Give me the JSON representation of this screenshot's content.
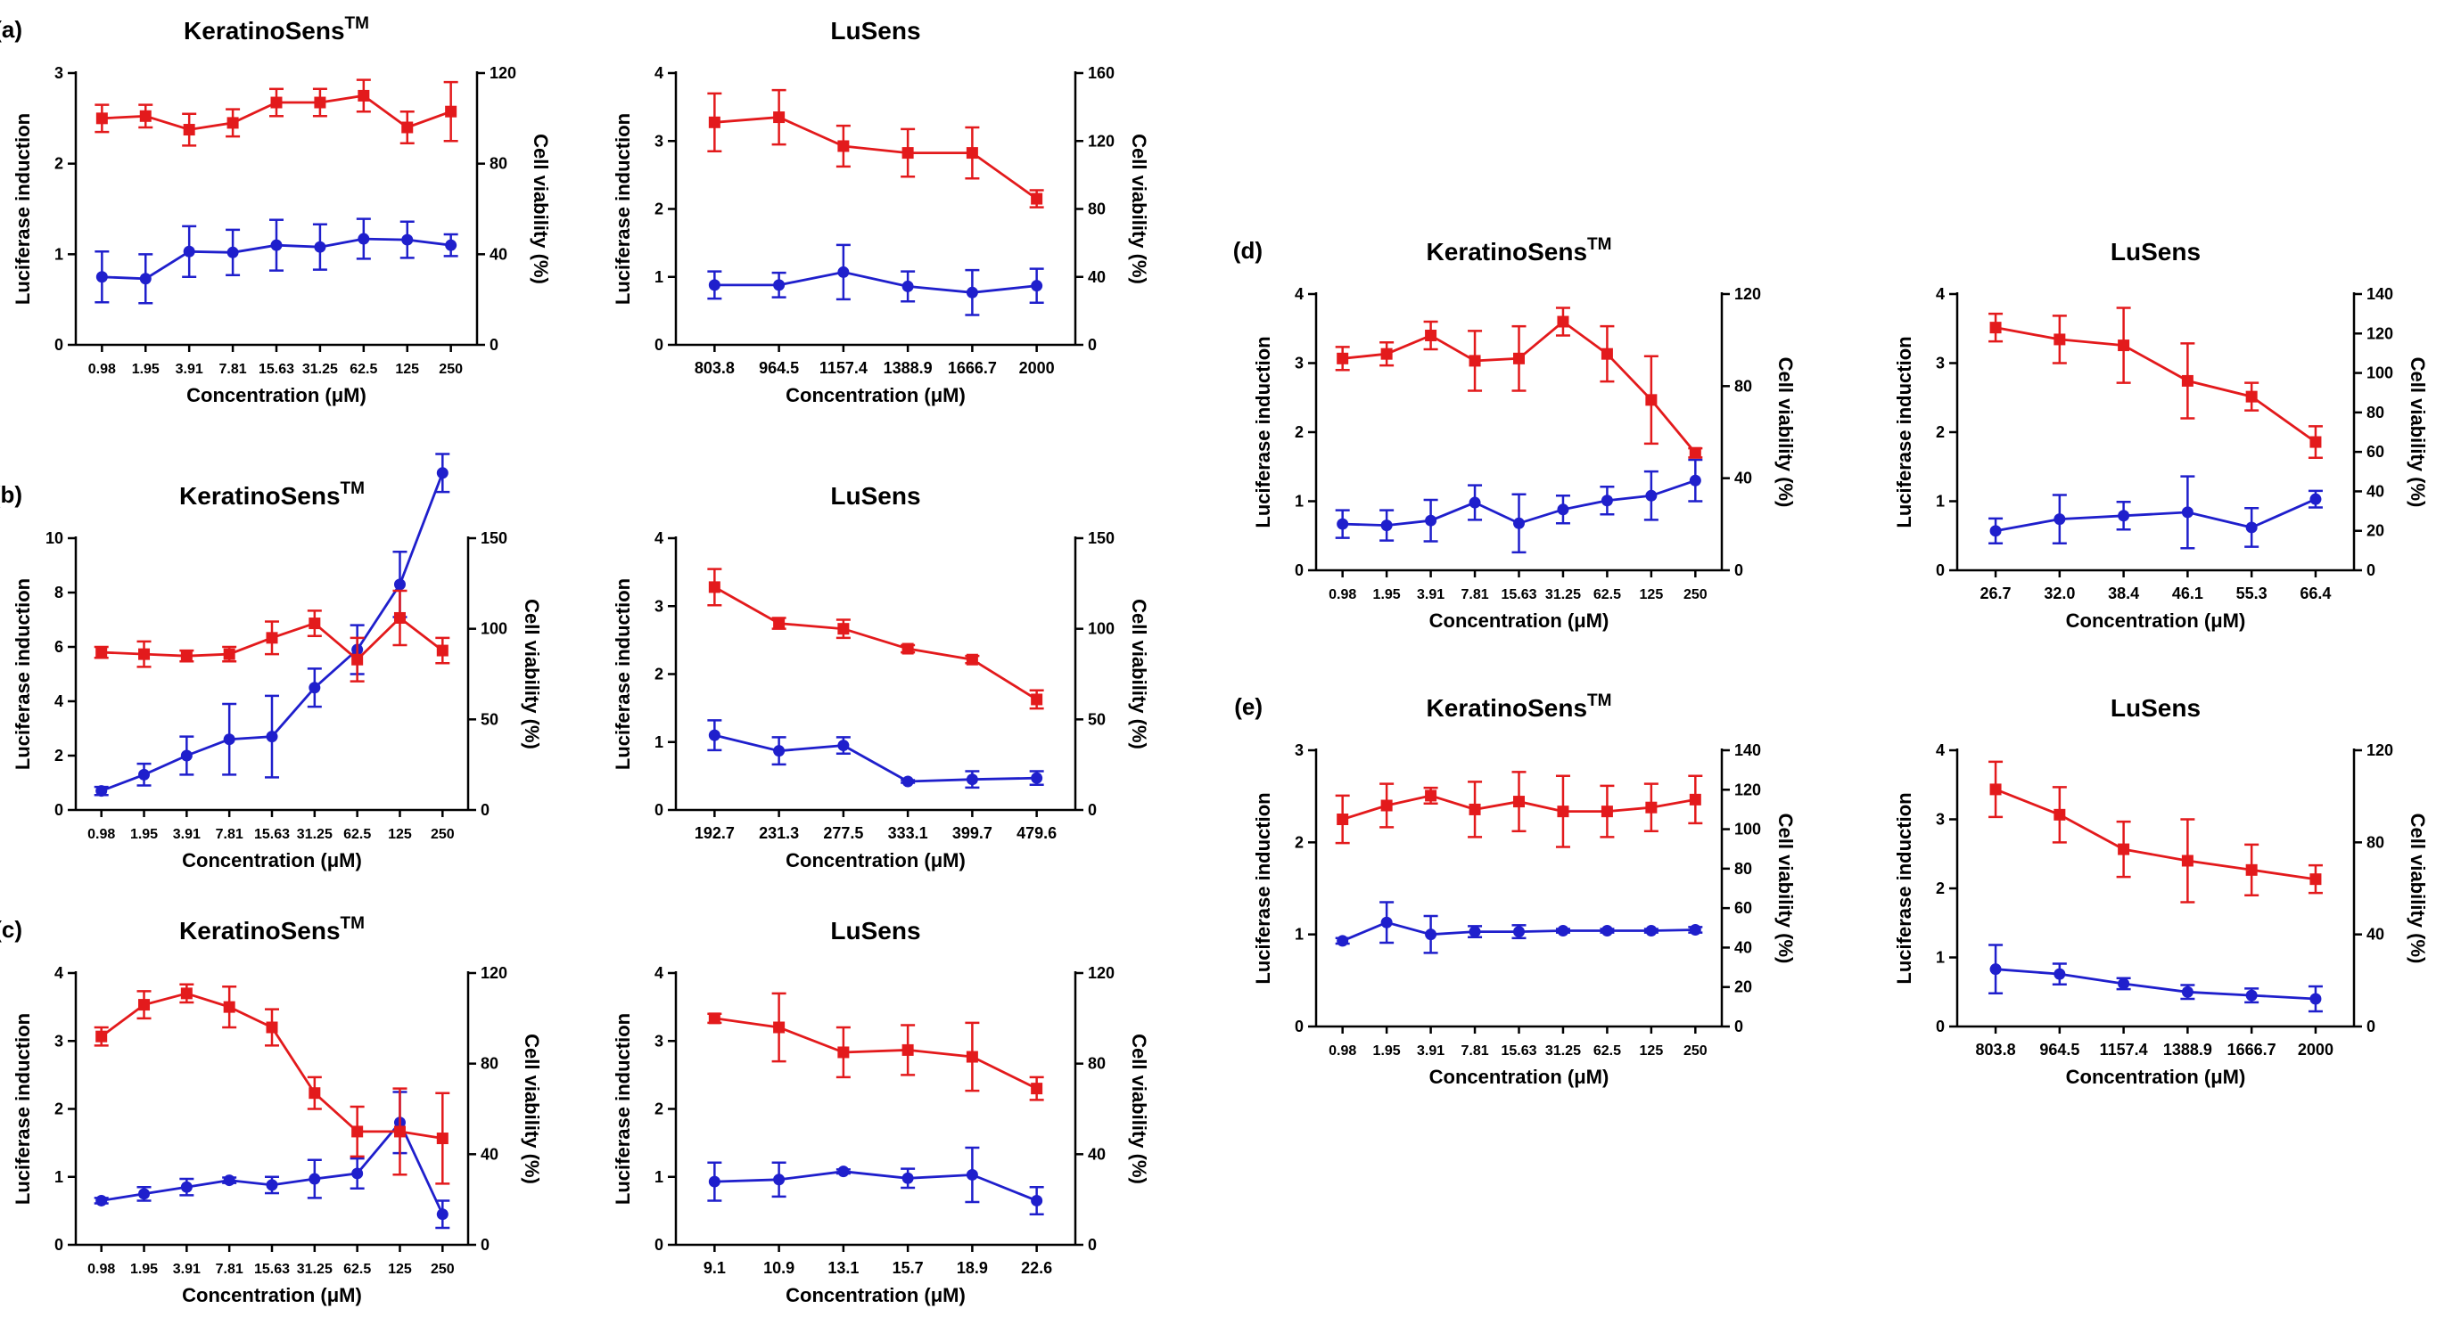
{
  "colors": {
    "luciferase": "#e31a1c",
    "viability": "#1f1fcc",
    "axis": "#000000"
  },
  "axis_text": {
    "ylabel_left": "Luciferase induction",
    "ylabel_right": "Cell viability (%)",
    "xlabel": "Concentration (μM)"
  },
  "chart_data": [
    {
      "id": "a-keratinosens",
      "panel": "(a)",
      "title": "KeratinoSens",
      "title_sup": "TM",
      "type": "line",
      "categories": [
        "0.98",
        "1.95",
        "3.91",
        "7.81",
        "15.63",
        "31.25",
        "62.5",
        "125",
        "250"
      ],
      "y_left": {
        "min": 0,
        "max": 3,
        "ticks": [
          "0",
          "1",
          "2",
          "3"
        ]
      },
      "y_right": {
        "min": 0,
        "max": 120,
        "ticks": [
          "0",
          "40",
          "80",
          "120"
        ]
      },
      "series": [
        {
          "name": "Luciferase induction",
          "axis": "left",
          "values": [
            0.75,
            0.73,
            1.03,
            1.02,
            1.1,
            1.08,
            1.17,
            1.16,
            1.1
          ],
          "errors": [
            0.28,
            0.27,
            0.28,
            0.25,
            0.28,
            0.25,
            0.22,
            0.2,
            0.12
          ]
        },
        {
          "name": "Cell viability",
          "axis": "right",
          "values": [
            100,
            101,
            95,
            98,
            107,
            107,
            110,
            96,
            103
          ],
          "errors": [
            6,
            5,
            7,
            6,
            6,
            6,
            7,
            7,
            13
          ]
        }
      ]
    },
    {
      "id": "a-lusens",
      "panel": "",
      "title": "LuSens",
      "title_sup": "",
      "type": "line",
      "categories": [
        "803.8",
        "964.5",
        "1157.4",
        "1388.9",
        "1666.7",
        "2000"
      ],
      "y_left": {
        "min": 0,
        "max": 4,
        "ticks": [
          "0",
          "1",
          "2",
          "3",
          "4"
        ]
      },
      "y_right": {
        "min": 0,
        "max": 160,
        "ticks": [
          "0",
          "40",
          "80",
          "120",
          "160"
        ]
      },
      "series": [
        {
          "name": "Luciferase induction",
          "axis": "left",
          "values": [
            0.88,
            0.88,
            1.07,
            0.86,
            0.77,
            0.87
          ],
          "errors": [
            0.2,
            0.18,
            0.4,
            0.22,
            0.33,
            0.25
          ]
        },
        {
          "name": "Cell viability",
          "axis": "right",
          "values": [
            131,
            134,
            117,
            113,
            113,
            86
          ],
          "errors": [
            17,
            16,
            12,
            14,
            15,
            5
          ]
        }
      ]
    },
    {
      "id": "b-keratinosens",
      "panel": "(b)",
      "title": "KeratinoSens",
      "title_sup": "TM",
      "type": "line",
      "categories": [
        "0.98",
        "1.95",
        "3.91",
        "7.81",
        "15.63",
        "31.25",
        "62.5",
        "125",
        "250"
      ],
      "y_left": {
        "min": 0,
        "max": 10,
        "ticks": [
          "0",
          "2",
          "4",
          "6",
          "8",
          "10"
        ]
      },
      "y_right": {
        "min": 0,
        "max": 150,
        "ticks": [
          "0",
          "50",
          "100",
          "150"
        ]
      },
      "series": [
        {
          "name": "Luciferase induction",
          "axis": "left",
          "values": [
            0.7,
            1.3,
            2.0,
            2.6,
            2.7,
            4.5,
            5.9,
            8.3,
            12.4
          ],
          "errors": [
            0.15,
            0.4,
            0.7,
            1.3,
            1.5,
            0.7,
            0.9,
            1.2,
            0.7
          ]
        },
        {
          "name": "Cell viability",
          "axis": "right",
          "values": [
            87,
            86,
            85,
            86,
            95,
            103,
            83,
            106,
            88
          ],
          "errors": [
            3,
            7,
            3,
            4,
            9,
            7,
            12,
            15,
            7
          ]
        }
      ]
    },
    {
      "id": "b-lusens",
      "panel": "",
      "title": "LuSens",
      "title_sup": "",
      "type": "line",
      "categories": [
        "192.7",
        "231.3",
        "277.5",
        "333.1",
        "399.7",
        "479.6"
      ],
      "y_left": {
        "min": 0,
        "max": 4,
        "ticks": [
          "0",
          "1",
          "2",
          "3",
          "4"
        ]
      },
      "y_right": {
        "min": 0,
        "max": 150,
        "ticks": [
          "0",
          "50",
          "100",
          "150"
        ]
      },
      "series": [
        {
          "name": "Luciferase induction",
          "axis": "left",
          "values": [
            1.1,
            0.87,
            0.95,
            0.42,
            0.45,
            0.47
          ],
          "errors": [
            0.22,
            0.2,
            0.12,
            0.02,
            0.12,
            0.1
          ]
        },
        {
          "name": "Cell viability",
          "axis": "right",
          "values": [
            123,
            103,
            100,
            89,
            83,
            61
          ],
          "errors": [
            10,
            3,
            5,
            2,
            2,
            5
          ]
        }
      ]
    },
    {
      "id": "c-keratinosens",
      "panel": "(c)",
      "title": "KeratinoSens",
      "title_sup": "TM",
      "type": "line",
      "categories": [
        "0.98",
        "1.95",
        "3.91",
        "7.81",
        "15.63",
        "31.25",
        "62.5",
        "125",
        "250"
      ],
      "y_left": {
        "min": 0,
        "max": 4,
        "ticks": [
          "0",
          "1",
          "2",
          "3",
          "4"
        ]
      },
      "y_right": {
        "min": 0,
        "max": 120,
        "ticks": [
          "0",
          "40",
          "80",
          "120"
        ]
      },
      "series": [
        {
          "name": "Luciferase induction",
          "axis": "left",
          "values": [
            0.65,
            0.75,
            0.85,
            0.95,
            0.88,
            0.97,
            1.05,
            1.8,
            0.45
          ],
          "errors": [
            0.04,
            0.1,
            0.12,
            0.04,
            0.12,
            0.28,
            0.22,
            0.45,
            0.2
          ]
        },
        {
          "name": "Cell viability",
          "axis": "right",
          "values": [
            92,
            106,
            111,
            105,
            96,
            67,
            50,
            50,
            47
          ],
          "errors": [
            4,
            6,
            4,
            9,
            8,
            7,
            11,
            19,
            20
          ]
        }
      ]
    },
    {
      "id": "c-lusens",
      "panel": "",
      "title": "LuSens",
      "title_sup": "",
      "type": "line",
      "categories": [
        "9.1",
        "10.9",
        "13.1",
        "15.7",
        "18.9",
        "22.6"
      ],
      "y_left": {
        "min": 0,
        "max": 4,
        "ticks": [
          "0",
          "1",
          "2",
          "3",
          "4"
        ]
      },
      "y_right": {
        "min": 0,
        "max": 120,
        "ticks": [
          "0",
          "40",
          "80",
          "120"
        ]
      },
      "series": [
        {
          "name": "Luciferase induction",
          "axis": "left",
          "values": [
            0.93,
            0.96,
            1.08,
            0.98,
            1.03,
            0.65
          ],
          "errors": [
            0.28,
            0.25,
            0.03,
            0.14,
            0.4,
            0.2
          ]
        },
        {
          "name": "Cell viability",
          "axis": "right",
          "values": [
            100,
            96,
            85,
            86,
            83,
            69
          ],
          "errors": [
            2,
            15,
            11,
            11,
            15,
            5
          ]
        }
      ]
    },
    {
      "id": "d-keratinosens",
      "panel": "(d)",
      "title": "KeratinoSens",
      "title_sup": "TM",
      "type": "line",
      "categories": [
        "0.98",
        "1.95",
        "3.91",
        "7.81",
        "15.63",
        "31.25",
        "62.5",
        "125",
        "250"
      ],
      "y_left": {
        "min": 0,
        "max": 4,
        "ticks": [
          "0",
          "1",
          "2",
          "3",
          "4"
        ]
      },
      "y_right": {
        "min": 0,
        "max": 120,
        "ticks": [
          "0",
          "40",
          "80",
          "120"
        ]
      },
      "series": [
        {
          "name": "Luciferase induction",
          "axis": "left",
          "values": [
            0.67,
            0.65,
            0.72,
            0.98,
            0.68,
            0.88,
            1.01,
            1.08,
            1.3
          ],
          "errors": [
            0.2,
            0.22,
            0.3,
            0.25,
            0.42,
            0.2,
            0.2,
            0.35,
            0.3
          ]
        },
        {
          "name": "Cell viability",
          "axis": "right",
          "values": [
            92,
            94,
            102,
            91,
            92,
            108,
            94,
            74,
            51
          ],
          "errors": [
            5,
            5,
            6,
            13,
            14,
            6,
            12,
            19,
            2
          ]
        }
      ]
    },
    {
      "id": "d-lusens",
      "panel": "",
      "title": "LuSens",
      "title_sup": "",
      "type": "line",
      "categories": [
        "26.7",
        "32.0",
        "38.4",
        "46.1",
        "55.3",
        "66.4"
      ],
      "y_left": {
        "min": 0,
        "max": 4,
        "ticks": [
          "0",
          "1",
          "2",
          "3",
          "4"
        ]
      },
      "y_right": {
        "min": 0,
        "max": 140,
        "ticks": [
          "0",
          "20",
          "40",
          "60",
          "80",
          "100",
          "120",
          "140"
        ]
      },
      "series": [
        {
          "name": "Luciferase induction",
          "axis": "left",
          "values": [
            0.57,
            0.74,
            0.79,
            0.84,
            0.62,
            1.03
          ],
          "errors": [
            0.18,
            0.35,
            0.2,
            0.52,
            0.28,
            0.12
          ]
        },
        {
          "name": "Cell viability",
          "axis": "right",
          "values": [
            123,
            117,
            114,
            96,
            88,
            65
          ],
          "errors": [
            7,
            12,
            19,
            19,
            7,
            8
          ]
        }
      ]
    },
    {
      "id": "e-keratinosens",
      "panel": "(e)",
      "title": "KeratinoSens",
      "title_sup": "TM",
      "type": "line",
      "categories": [
        "0.98",
        "1.95",
        "3.91",
        "7.81",
        "15.63",
        "31.25",
        "62.5",
        "125",
        "250"
      ],
      "y_left": {
        "min": 0,
        "max": 3,
        "ticks": [
          "0",
          "1",
          "2",
          "3"
        ]
      },
      "y_right": {
        "min": 0,
        "max": 140,
        "ticks": [
          "0",
          "20",
          "40",
          "60",
          "80",
          "100",
          "120",
          "140"
        ]
      },
      "series": [
        {
          "name": "Luciferase induction",
          "axis": "left",
          "values": [
            0.93,
            1.13,
            1.0,
            1.03,
            1.03,
            1.04,
            1.04,
            1.04,
            1.05
          ],
          "errors": [
            0.03,
            0.22,
            0.2,
            0.06,
            0.07,
            0.02,
            0.02,
            0.02,
            0.03
          ]
        },
        {
          "name": "Cell viability",
          "axis": "right",
          "values": [
            105,
            112,
            117,
            110,
            114,
            109,
            109,
            111,
            115
          ],
          "errors": [
            12,
            11,
            4,
            14,
            15,
            18,
            13,
            12,
            12
          ]
        }
      ]
    },
    {
      "id": "e-lusens",
      "panel": "",
      "title": "LuSens",
      "title_sup": "",
      "type": "line",
      "categories": [
        "803.8",
        "964.5",
        "1157.4",
        "1388.9",
        "1666.7",
        "2000"
      ],
      "y_left": {
        "min": 0,
        "max": 4,
        "ticks": [
          "0",
          "1",
          "2",
          "3",
          "4"
        ]
      },
      "y_right": {
        "min": 0,
        "max": 120,
        "ticks": [
          "0",
          "40",
          "80",
          "120"
        ]
      },
      "series": [
        {
          "name": "Luciferase induction",
          "axis": "left",
          "values": [
            0.83,
            0.76,
            0.62,
            0.5,
            0.45,
            0.4
          ],
          "errors": [
            0.35,
            0.15,
            0.08,
            0.1,
            0.1,
            0.18
          ]
        },
        {
          "name": "Cell viability",
          "axis": "right",
          "values": [
            103,
            92,
            77,
            72,
            68,
            64
          ],
          "errors": [
            12,
            12,
            12,
            18,
            11,
            6
          ]
        }
      ]
    }
  ]
}
